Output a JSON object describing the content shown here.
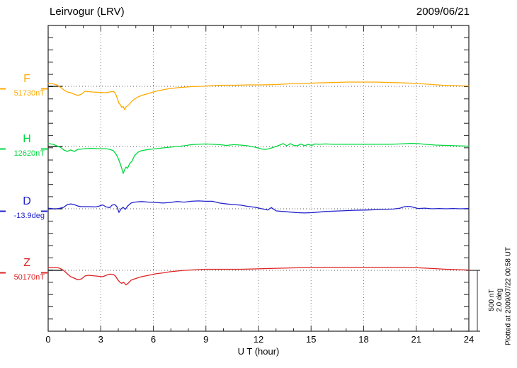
{
  "header": {
    "title": "Leirvogur (LRV)",
    "date": "2009/06/21"
  },
  "traces": [
    {
      "id": "F",
      "label": "F",
      "value_label": "51730nT",
      "unit": "nT",
      "color": "#ffaa00"
    },
    {
      "id": "H",
      "label": "H",
      "value_label": "12620nT",
      "unit": "nT",
      "color": "#00d840"
    },
    {
      "id": "D",
      "label": "D",
      "value_label": "-13.9deg",
      "unit": "deg",
      "color": "#2222cc"
    },
    {
      "id": "Z",
      "label": "Z",
      "value_label": "50170nT",
      "unit": "nT",
      "color": "#dd2222"
    }
  ],
  "x_axis": {
    "label": "U T (hour)",
    "ticks": [
      0,
      3,
      6,
      9,
      12,
      15,
      18,
      21,
      24
    ],
    "minor_every": 1,
    "range": [
      0,
      24
    ]
  },
  "scale_bar": {
    "lines": [
      "500 nT",
      "2.0 deg"
    ]
  },
  "footer_note": "Plotted at 2009/07/22 00:58 UT",
  "chart_data": {
    "type": "line",
    "title": "Leirvogur (LRV) magnetogram 2009/06/21",
    "xlabel": "U T (hour)",
    "xlim": [
      0,
      24
    ],
    "grid": "dotted vertical every 3 h, dotted horizontal baseline per trace",
    "scale": {
      "nT_per_division": 500,
      "deg_per_division": 2.0
    },
    "series": [
      {
        "name": "F",
        "baseline_value": 51730,
        "unit": "nT",
        "values_are": "offset from baseline",
        "points": [
          [
            0,
            24
          ],
          [
            0.28,
            21
          ],
          [
            0.48,
            12
          ],
          [
            0.69,
            -6
          ],
          [
            0.89,
            -29
          ],
          [
            1.09,
            -47
          ],
          [
            1.29,
            -53
          ],
          [
            1.49,
            -65
          ],
          [
            1.7,
            -76
          ],
          [
            1.9,
            -65
          ],
          [
            2.1,
            -41
          ],
          [
            2.3,
            -44
          ],
          [
            2.51,
            -47
          ],
          [
            2.91,
            -50
          ],
          [
            3.31,
            -53
          ],
          [
            3.52,
            -47
          ],
          [
            3.72,
            -41
          ],
          [
            3.84,
            -59
          ],
          [
            3.96,
            -106
          ],
          [
            4.04,
            -141
          ],
          [
            4.12,
            -153
          ],
          [
            4.2,
            -176
          ],
          [
            4.28,
            -165
          ],
          [
            4.36,
            -194
          ],
          [
            4.44,
            -171
          ],
          [
            4.61,
            -153
          ],
          [
            4.77,
            -124
          ],
          [
            4.93,
            -106
          ],
          [
            5.13,
            -88
          ],
          [
            5.33,
            -76
          ],
          [
            5.74,
            -59
          ],
          [
            6.14,
            -41
          ],
          [
            6.55,
            -29
          ],
          [
            6.95,
            -18
          ],
          [
            7.56,
            -9
          ],
          [
            8.16,
            -3
          ],
          [
            8.77,
            0
          ],
          [
            9.37,
            6
          ],
          [
            9.78,
            9
          ],
          [
            10.59,
            9
          ],
          [
            11.39,
            12
          ],
          [
            12.2,
            12
          ],
          [
            13.01,
            15
          ],
          [
            13.82,
            21
          ],
          [
            14.63,
            24
          ],
          [
            15.43,
            29
          ],
          [
            16.24,
            32
          ],
          [
            17.05,
            35
          ],
          [
            17.86,
            35
          ],
          [
            18.67,
            35
          ],
          [
            19.47,
            32
          ],
          [
            20.28,
            29
          ],
          [
            21.09,
            24
          ],
          [
            21.9,
            15
          ],
          [
            22.51,
            9
          ],
          [
            23.11,
            6
          ],
          [
            24,
            3
          ]
        ]
      },
      {
        "name": "H",
        "baseline_value": 12620,
        "unit": "nT",
        "values_are": "offset from baseline",
        "points": [
          [
            0,
            24
          ],
          [
            0.28,
            18
          ],
          [
            0.48,
            6
          ],
          [
            0.69,
            -6
          ],
          [
            0.89,
            -29
          ],
          [
            1.09,
            -41
          ],
          [
            1.29,
            -29
          ],
          [
            1.49,
            -41
          ],
          [
            1.7,
            -24
          ],
          [
            2.1,
            -18
          ],
          [
            2.51,
            -15
          ],
          [
            2.91,
            -18
          ],
          [
            3.31,
            -18
          ],
          [
            3.52,
            -24
          ],
          [
            3.72,
            -35
          ],
          [
            3.88,
            -65
          ],
          [
            4,
            -100
          ],
          [
            4.12,
            -147
          ],
          [
            4.2,
            -182
          ],
          [
            4.28,
            -224
          ],
          [
            4.36,
            -194
          ],
          [
            4.44,
            -171
          ],
          [
            4.53,
            -182
          ],
          [
            4.65,
            -141
          ],
          [
            4.77,
            -124
          ],
          [
            4.93,
            -76
          ],
          [
            5.13,
            -47
          ],
          [
            5.33,
            -35
          ],
          [
            5.74,
            -24
          ],
          [
            6.14,
            -18
          ],
          [
            6.55,
            -12
          ],
          [
            7.15,
            -3
          ],
          [
            7.76,
            6
          ],
          [
            8.16,
            15
          ],
          [
            8.57,
            18
          ],
          [
            8.97,
            21
          ],
          [
            9.37,
            18
          ],
          [
            9.78,
            15
          ],
          [
            10.18,
            9
          ],
          [
            10.59,
            15
          ],
          [
            10.99,
            12
          ],
          [
            11.39,
            6
          ],
          [
            11.8,
            -6
          ],
          [
            12.2,
            -21
          ],
          [
            12.4,
            -24
          ],
          [
            12.61,
            -18
          ],
          [
            12.81,
            -9
          ],
          [
            13.01,
            0
          ],
          [
            13.21,
            12
          ],
          [
            13.41,
            24
          ],
          [
            13.62,
            6
          ],
          [
            13.82,
            24
          ],
          [
            14.02,
            9
          ],
          [
            14.22,
            6
          ],
          [
            14.42,
            21
          ],
          [
            14.63,
            6
          ],
          [
            14.83,
            18
          ],
          [
            15.03,
            9
          ],
          [
            15.23,
            21
          ],
          [
            15.43,
            18
          ],
          [
            15.84,
            21
          ],
          [
            16.24,
            18
          ],
          [
            17.05,
            18
          ],
          [
            17.86,
            18
          ],
          [
            18.67,
            18
          ],
          [
            19.47,
            18
          ],
          [
            20.08,
            21
          ],
          [
            20.69,
            26
          ],
          [
            21.09,
            24
          ],
          [
            21.49,
            18
          ],
          [
            22.1,
            12
          ],
          [
            22.71,
            9
          ],
          [
            23.31,
            6
          ],
          [
            24,
            3
          ]
        ]
      },
      {
        "name": "D",
        "baseline_value": -13.9,
        "unit": "deg",
        "values_are": "offset from baseline",
        "points": [
          [
            0,
            0.02
          ],
          [
            0.4,
            -0.01
          ],
          [
            0.69,
            0.02
          ],
          [
            0.89,
            0.05
          ],
          [
            1.09,
            0.14
          ],
          [
            1.29,
            0.16
          ],
          [
            1.49,
            0.14
          ],
          [
            1.7,
            0.09
          ],
          [
            1.9,
            0.07
          ],
          [
            2.3,
            0.07
          ],
          [
            2.71,
            0.06
          ],
          [
            2.91,
            0.09
          ],
          [
            3.11,
            0.13
          ],
          [
            3.31,
            0.06
          ],
          [
            3.52,
            0.04
          ],
          [
            3.64,
            0.12
          ],
          [
            3.8,
            0.14
          ],
          [
            3.92,
            0.07
          ],
          [
            4.04,
            -0.12
          ],
          [
            4.16,
            0
          ],
          [
            4.28,
            0.05
          ],
          [
            4.4,
            -0.02
          ],
          [
            4.53,
            0.09
          ],
          [
            4.73,
            0.19
          ],
          [
            4.93,
            0.22
          ],
          [
            5.33,
            0.24
          ],
          [
            5.74,
            0.22
          ],
          [
            6.14,
            0.21
          ],
          [
            6.55,
            0.19
          ],
          [
            6.95,
            0.21
          ],
          [
            7.35,
            0.24
          ],
          [
            7.76,
            0.22
          ],
          [
            8.16,
            0.25
          ],
          [
            8.57,
            0.26
          ],
          [
            8.97,
            0.25
          ],
          [
            9.37,
            0.25
          ],
          [
            9.78,
            0.19
          ],
          [
            10.18,
            0.16
          ],
          [
            10.59,
            0.14
          ],
          [
            10.99,
            0.12
          ],
          [
            11.39,
            0.08
          ],
          [
            11.8,
            0.05
          ],
          [
            12.2,
            0
          ],
          [
            12.53,
            -0.04
          ],
          [
            12.73,
            0.04
          ],
          [
            13.01,
            -0.07
          ],
          [
            13.41,
            -0.09
          ],
          [
            13.82,
            -0.11
          ],
          [
            14.22,
            -0.13
          ],
          [
            14.63,
            -0.14
          ],
          [
            15.03,
            -0.13
          ],
          [
            15.43,
            -0.11
          ],
          [
            15.84,
            -0.09
          ],
          [
            16.65,
            -0.07
          ],
          [
            17.45,
            -0.05
          ],
          [
            18.26,
            -0.04
          ],
          [
            19.07,
            -0.02
          ],
          [
            19.68,
            -0.01
          ],
          [
            20.08,
            0.02
          ],
          [
            20.28,
            0.06
          ],
          [
            20.49,
            0.08
          ],
          [
            20.69,
            0.07
          ],
          [
            20.89,
            0.04
          ],
          [
            21.09,
            0.01
          ],
          [
            21.49,
            0.02
          ],
          [
            21.9,
            0
          ],
          [
            22.3,
            0.01
          ],
          [
            22.71,
            0
          ],
          [
            23.11,
            0.01
          ],
          [
            23.52,
            0
          ],
          [
            24,
            0.01
          ]
        ]
      },
      {
        "name": "Z",
        "baseline_value": 50170,
        "unit": "nT",
        "values_are": "offset from baseline",
        "points": [
          [
            0,
            24
          ],
          [
            0.4,
            24
          ],
          [
            0.65,
            18
          ],
          [
            0.81,
            6
          ],
          [
            0.97,
            -12
          ],
          [
            1.13,
            -35
          ],
          [
            1.29,
            -53
          ],
          [
            1.49,
            -65
          ],
          [
            1.7,
            -79
          ],
          [
            1.9,
            -71
          ],
          [
            2.1,
            -47
          ],
          [
            2.3,
            -41
          ],
          [
            2.51,
            -44
          ],
          [
            2.71,
            -47
          ],
          [
            2.91,
            -50
          ],
          [
            3.11,
            -53
          ],
          [
            3.31,
            -41
          ],
          [
            3.52,
            -32
          ],
          [
            3.72,
            -35
          ],
          [
            3.84,
            -47
          ],
          [
            3.96,
            -76
          ],
          [
            4.08,
            -97
          ],
          [
            4.2,
            -109
          ],
          [
            4.28,
            -100
          ],
          [
            4.36,
            -106
          ],
          [
            4.44,
            -121
          ],
          [
            4.57,
            -106
          ],
          [
            4.73,
            -82
          ],
          [
            4.93,
            -71
          ],
          [
            5.13,
            -62
          ],
          [
            5.33,
            -53
          ],
          [
            5.74,
            -41
          ],
          [
            6.14,
            -29
          ],
          [
            6.55,
            -21
          ],
          [
            6.95,
            -12
          ],
          [
            7.35,
            -6
          ],
          [
            7.76,
            0
          ],
          [
            8.16,
            3
          ],
          [
            8.57,
            6
          ],
          [
            8.97,
            9
          ],
          [
            10.18,
            9
          ],
          [
            10.99,
            9
          ],
          [
            11.8,
            12
          ],
          [
            12.61,
            15
          ],
          [
            13.41,
            18
          ],
          [
            14.22,
            21
          ],
          [
            15.03,
            24
          ],
          [
            15.84,
            26
          ],
          [
            16.65,
            26
          ],
          [
            17.45,
            26
          ],
          [
            18.26,
            26
          ],
          [
            19.07,
            26
          ],
          [
            19.88,
            26
          ],
          [
            20.28,
            24
          ],
          [
            21.09,
            21
          ],
          [
            21.9,
            15
          ],
          [
            22.71,
            9
          ],
          [
            23.31,
            6
          ],
          [
            24,
            3
          ]
        ]
      }
    ]
  }
}
